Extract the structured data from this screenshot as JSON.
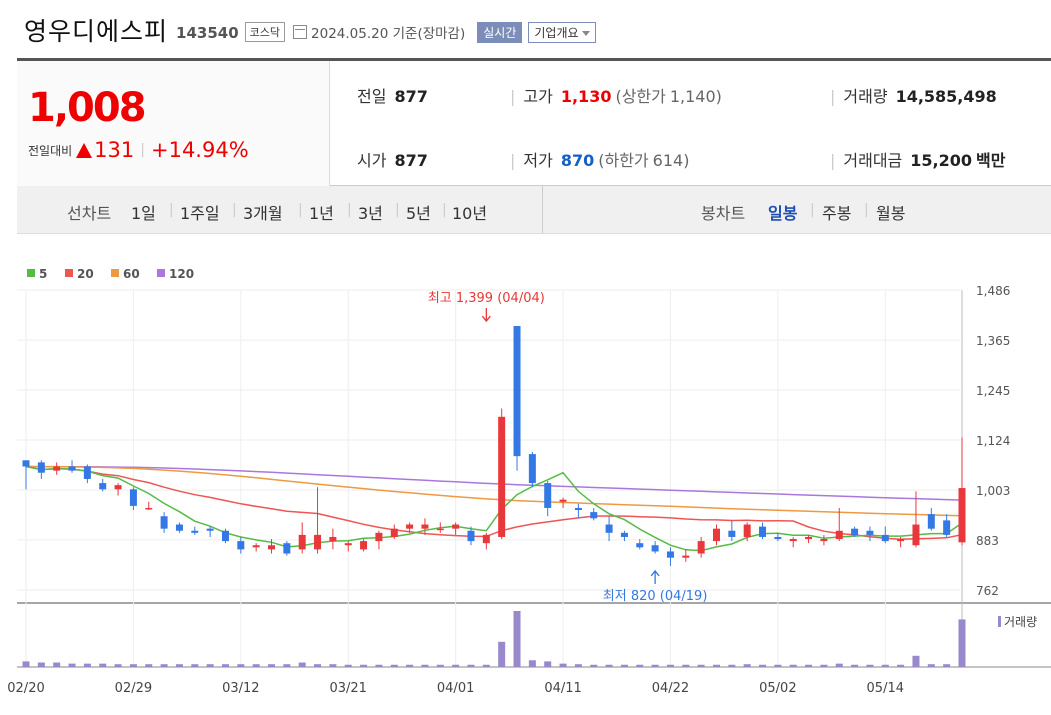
{
  "header": {
    "name": "영우디에스피",
    "code": "143540",
    "market": "코스닥",
    "date": "2024.05.20 기준(장마감)",
    "realtime_label": "실시간",
    "company_label": "기업개요"
  },
  "price": {
    "current": "1,008",
    "change_label": "전일대비",
    "change_amount": "131",
    "change_percent": "+14.94%"
  },
  "stats": {
    "prev_label": "전일",
    "prev": "877",
    "open_label": "시가",
    "open": "877",
    "high_label": "고가",
    "high": "1,130",
    "upper_label": "(상한가",
    "upper": "1,140)",
    "low_label": "저가",
    "low": "870",
    "lower_label": "(하한가",
    "lower": "614)",
    "volume_label": "거래량",
    "volume": "14,585,498",
    "amount_label": "거래대금",
    "amount": "15,200",
    "amount_unit": "백만"
  },
  "toolbar": {
    "line_label": "선차트",
    "line_periods": [
      "1일",
      "1주일",
      "3개월",
      "1년",
      "3년",
      "5년",
      "10년"
    ],
    "candle_label": "봉차트",
    "candle_periods": [
      "일봉",
      "주봉",
      "월봉"
    ],
    "active_candle": "일봉"
  },
  "colors": {
    "up": "#e8383b",
    "down": "#3478e5",
    "ma5": "#55bb44",
    "ma20": "#ee5555",
    "ma60": "#ee9944",
    "ma120": "#aa77dd",
    "volume": "#9988cc",
    "active": "#1d4fb4"
  },
  "chart_data": {
    "type": "candlestick",
    "legend": [
      "5",
      "20",
      "60",
      "120"
    ],
    "y_ticks": [
      "1,486",
      "1,365",
      "1,245",
      "1,124",
      "1,003",
      "883",
      "762"
    ],
    "ylim": [
      762,
      1486
    ],
    "x_ticks": [
      {
        "label": "02/20",
        "index": 0
      },
      {
        "label": "02/29",
        "index": 7
      },
      {
        "label": "03/12",
        "index": 14
      },
      {
        "label": "03/21",
        "index": 21
      },
      {
        "label": "04/01",
        "index": 28
      },
      {
        "label": "04/11",
        "index": 35
      },
      {
        "label": "04/22",
        "index": 42
      },
      {
        "label": "05/02",
        "index": 49
      },
      {
        "label": "05/14",
        "index": 56
      }
    ],
    "annotations": {
      "high": {
        "text": "최고 1,399 (04/04)",
        "index": 30,
        "value": 1399
      },
      "low": {
        "text": "최저 820 (04/19)",
        "index": 41,
        "value": 820
      }
    },
    "volume_label": "거래량",
    "candles": [
      [
        1075,
        1075,
        1005,
        1060
      ],
      [
        1070,
        1075,
        1030,
        1045
      ],
      [
        1050,
        1070,
        1040,
        1060
      ],
      [
        1060,
        1075,
        1045,
        1050
      ],
      [
        1060,
        1065,
        1020,
        1030
      ],
      [
        1020,
        1030,
        1000,
        1005
      ],
      [
        1005,
        1020,
        990,
        1015
      ],
      [
        1005,
        1010,
        955,
        965
      ],
      [
        960,
        975,
        955,
        960
      ],
      [
        940,
        950,
        900,
        910
      ],
      [
        920,
        925,
        900,
        905
      ],
      [
        905,
        915,
        895,
        900
      ],
      [
        910,
        915,
        890,
        905
      ],
      [
        905,
        910,
        875,
        880
      ],
      [
        880,
        890,
        850,
        860
      ],
      [
        865,
        875,
        855,
        870
      ],
      [
        860,
        885,
        850,
        870
      ],
      [
        875,
        880,
        845,
        850
      ],
      [
        860,
        925,
        850,
        895
      ],
      [
        860,
        1010,
        850,
        895
      ],
      [
        880,
        910,
        860,
        890
      ],
      [
        870,
        880,
        855,
        875
      ],
      [
        860,
        885,
        855,
        880
      ],
      [
        880,
        905,
        860,
        900
      ],
      [
        890,
        920,
        885,
        910
      ],
      [
        910,
        925,
        900,
        920
      ],
      [
        910,
        935,
        895,
        920
      ],
      [
        910,
        925,
        900,
        910
      ],
      [
        910,
        925,
        895,
        920
      ],
      [
        905,
        915,
        870,
        880
      ],
      [
        875,
        900,
        860,
        895
      ],
      [
        890,
        1200,
        885,
        1180
      ],
      [
        1399,
        1399,
        1050,
        1085
      ],
      [
        1090,
        1095,
        1010,
        1020
      ],
      [
        1020,
        1025,
        940,
        960
      ],
      [
        975,
        985,
        960,
        980
      ],
      [
        960,
        970,
        935,
        955
      ],
      [
        950,
        960,
        930,
        935
      ],
      [
        920,
        940,
        880,
        900
      ],
      [
        900,
        905,
        880,
        890
      ],
      [
        875,
        885,
        860,
        865
      ],
      [
        870,
        880,
        850,
        855
      ],
      [
        855,
        865,
        820,
        840
      ],
      [
        840,
        860,
        830,
        845
      ],
      [
        850,
        890,
        840,
        880
      ],
      [
        880,
        920,
        870,
        910
      ],
      [
        905,
        930,
        880,
        890
      ],
      [
        890,
        925,
        880,
        920
      ],
      [
        915,
        925,
        885,
        890
      ],
      [
        890,
        900,
        880,
        885
      ]
    ],
    "candles_tail": [
      [
        880,
        890,
        865,
        885
      ],
      [
        885,
        895,
        875,
        890
      ],
      [
        880,
        895,
        870,
        885
      ],
      [
        885,
        960,
        880,
        905
      ],
      [
        910,
        915,
        890,
        895
      ],
      [
        905,
        915,
        880,
        895
      ],
      [
        895,
        915,
        875,
        880
      ],
      [
        880,
        890,
        865,
        885
      ],
      [
        870,
        1000,
        865,
        920
      ],
      [
        945,
        960,
        905,
        910
      ],
      [
        930,
        945,
        890,
        895
      ],
      [
        877,
        1130,
        870,
        1008
      ]
    ],
    "volume": [
      0.1,
      0.08,
      0.08,
      0.06,
      0.06,
      0.06,
      0.05,
      0.05,
      0.05,
      0.05,
      0.05,
      0.05,
      0.05,
      0.05,
      0.05,
      0.05,
      0.05,
      0.05,
      0.08,
      0.05,
      0.05,
      0.04,
      0.04,
      0.04,
      0.04,
      0.04,
      0.04,
      0.04,
      0.04,
      0.04,
      0.04,
      0.45,
      1.0,
      0.12,
      0.1,
      0.06,
      0.05,
      0.04,
      0.04,
      0.04,
      0.04,
      0.04,
      0.04,
      0.04,
      0.04,
      0.04,
      0.04,
      0.05,
      0.04,
      0.04,
      0.04,
      0.04,
      0.04,
      0.06,
      0.04,
      0.04,
      0.04,
      0.04,
      0.2,
      0.05,
      0.05,
      0.85
    ]
  }
}
